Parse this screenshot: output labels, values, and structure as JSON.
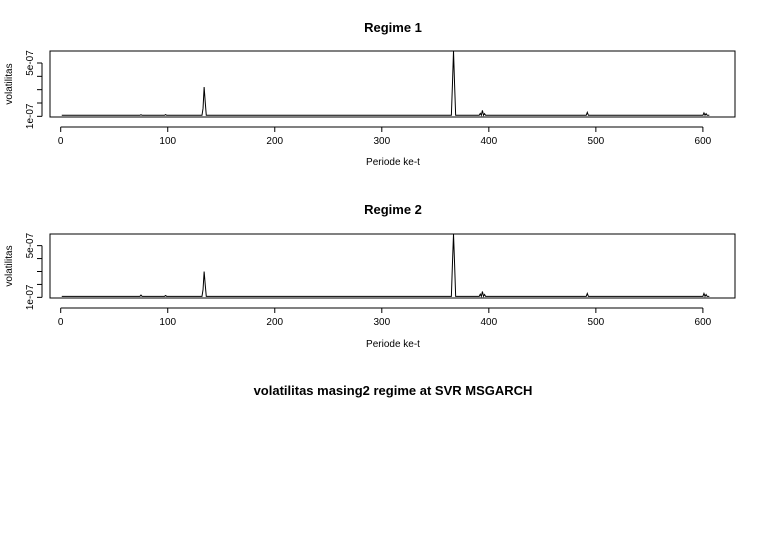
{
  "outer_title": "volatilitas masing2 regime at SVR MSGARCH",
  "chart_data": [
    {
      "type": "line",
      "title": "Regime 1",
      "xlabel": "Periode ke-t",
      "ylabel": "volatilitas",
      "xlim": [
        -10,
        630
      ],
      "ylim": [
        9.5e-08,
        5.9e-07
      ],
      "xticks": [
        0,
        100,
        200,
        300,
        400,
        500,
        600
      ],
      "xtick_labels": [
        "0",
        "100",
        "200",
        "300",
        "400",
        "500",
        "600"
      ],
      "yticks": [
        1e-07,
        5e-07
      ],
      "ytick_labels": [
        "1e-07",
        "5e-07"
      ],
      "baseline": 1.08e-07,
      "spikes": [
        {
          "x": 75,
          "y": 1.12e-07
        },
        {
          "x": 98,
          "y": 1.13e-07
        },
        {
          "x": 133,
          "y": 1.6e-07
        },
        {
          "x": 134,
          "y": 3.2e-07
        },
        {
          "x": 135,
          "y": 2.1e-07
        },
        {
          "x": 366,
          "y": 3.4e-07
        },
        {
          "x": 367,
          "y": 5.9e-07
        },
        {
          "x": 368,
          "y": 3.4e-07
        },
        {
          "x": 392,
          "y": 1.22e-07
        },
        {
          "x": 394,
          "y": 1.45e-07
        },
        {
          "x": 396,
          "y": 1.2e-07
        },
        {
          "x": 492,
          "y": 1.3e-07
        },
        {
          "x": 601,
          "y": 1.26e-07
        },
        {
          "x": 603,
          "y": 1.2e-07
        }
      ],
      "n_points": 606,
      "grid": false,
      "legend": "none"
    },
    {
      "type": "line",
      "title": "Regime 2",
      "xlabel": "Periode ke-t",
      "ylabel": "volatilitas",
      "xlim": [
        -10,
        630
      ],
      "ylim": [
        9.5e-08,
        5.9e-07
      ],
      "xticks": [
        0,
        100,
        200,
        300,
        400,
        500,
        600
      ],
      "xtick_labels": [
        "0",
        "100",
        "200",
        "300",
        "400",
        "500",
        "600"
      ],
      "yticks": [
        1e-07,
        5e-07
      ],
      "ytick_labels": [
        "1e-07",
        "5e-07"
      ],
      "baseline": 1.08e-07,
      "spikes": [
        {
          "x": 75,
          "y": 1.18e-07
        },
        {
          "x": 98,
          "y": 1.14e-07
        },
        {
          "x": 133,
          "y": 1.6e-07
        },
        {
          "x": 134,
          "y": 3e-07
        },
        {
          "x": 135,
          "y": 2e-07
        },
        {
          "x": 366,
          "y": 3.6e-07
        },
        {
          "x": 367,
          "y": 5.9e-07
        },
        {
          "x": 368,
          "y": 3.6e-07
        },
        {
          "x": 392,
          "y": 1.25e-07
        },
        {
          "x": 394,
          "y": 1.45e-07
        },
        {
          "x": 396,
          "y": 1.22e-07
        },
        {
          "x": 492,
          "y": 1.3e-07
        },
        {
          "x": 601,
          "y": 1.3e-07
        },
        {
          "x": 603,
          "y": 1.22e-07
        }
      ],
      "n_points": 606,
      "grid": false,
      "legend": "none"
    }
  ]
}
